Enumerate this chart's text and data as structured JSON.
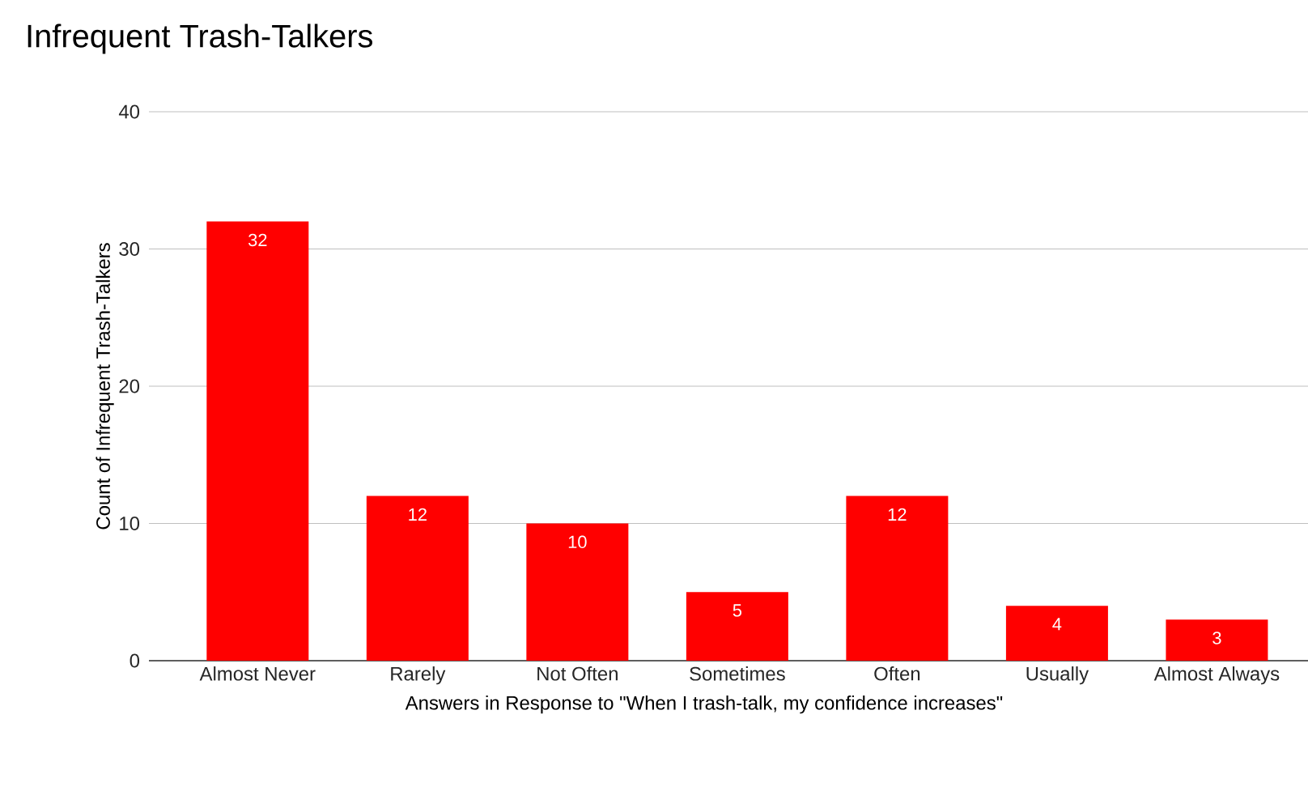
{
  "chart_data": {
    "type": "bar",
    "title": "Infrequent Trash-Talkers",
    "xlabel": "Answers in Response to \"When I trash-talk, my confidence increases\"",
    "ylabel": "Count of Infrequent Trash-Talkers",
    "categories": [
      "Almost Never",
      "Rarely",
      "Not Often",
      "Sometimes",
      "Often",
      "Usually",
      "Almost Always"
    ],
    "values": [
      32,
      12,
      10,
      5,
      12,
      4,
      3
    ],
    "color": "#ff0000",
    "ylim": [
      0,
      40
    ],
    "yticks": [
      0,
      10,
      20,
      30,
      40
    ],
    "grid": "y",
    "data_labels": true
  }
}
